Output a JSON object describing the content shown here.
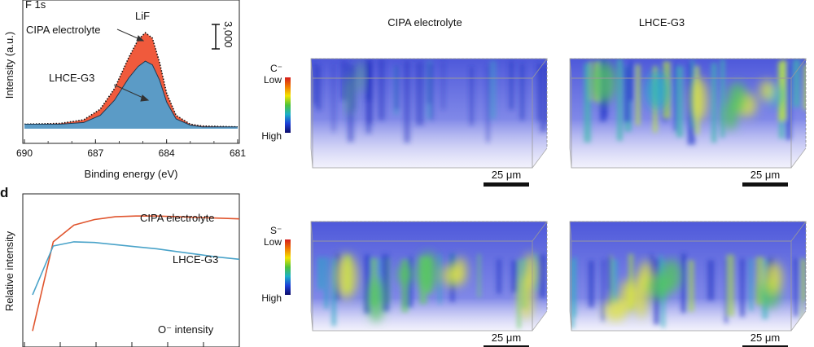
{
  "panels": {
    "c": {
      "label": "F 1s"
    },
    "d": {
      "label": "d"
    }
  },
  "tof": {
    "columns": [
      "CIPA electrolyte",
      "LHCE-G3"
    ],
    "ions": [
      {
        "name": "C⁻"
      },
      {
        "name": "S⁻"
      }
    ],
    "scale_low": "Low",
    "scale_high": "High",
    "scale_bar": "25 μm",
    "colormap": [
      "#d41c1c",
      "#f07a00",
      "#f2e400",
      "#4cc23a",
      "#1cb0c8",
      "#1d3fd8",
      "#0c0c6a"
    ]
  },
  "chart_data": [
    {
      "type": "area",
      "title": "F 1s",
      "xlabel": "Binding energy (eV)",
      "ylabel": "Intensity (a.u.)",
      "xlim": [
        690,
        681
      ],
      "x_reversed": true,
      "xticks": [
        "690",
        "687",
        "684",
        "681"
      ],
      "scale_bar_label": "3,000",
      "annotations": [
        "LiF",
        "CIPA electrolyte",
        "LHCE-G3"
      ],
      "series": [
        {
          "name": "CIPA electrolyte",
          "color": "#f05a3c",
          "x": [
            690,
            688.5,
            687.5,
            686.8,
            686.2,
            685.6,
            685.2,
            684.9,
            684.6,
            684.3,
            684.0,
            683.6,
            683.0,
            682.5,
            681
          ],
          "y": [
            0.05,
            0.06,
            0.1,
            0.22,
            0.45,
            0.8,
            1.0,
            1.08,
            1.02,
            0.75,
            0.4,
            0.15,
            0.05,
            0.03,
            0.02
          ]
        },
        {
          "name": "LHCE-G3",
          "color": "#5b9bc6",
          "x": [
            690,
            688.5,
            687.5,
            686.8,
            686.2,
            685.6,
            685.2,
            684.9,
            684.6,
            684.3,
            684.0,
            683.6,
            683.0,
            682.5,
            681
          ],
          "y": [
            0.05,
            0.05,
            0.07,
            0.15,
            0.32,
            0.57,
            0.7,
            0.76,
            0.72,
            0.55,
            0.3,
            0.11,
            0.04,
            0.02,
            0.02
          ]
        }
      ]
    },
    {
      "type": "line",
      "xlabel": "",
      "ylabel": "Relative intensity",
      "annotation": "O⁻ intensity",
      "x": [
        0,
        0.1,
        0.2,
        0.3,
        0.4,
        0.5,
        0.6,
        0.7,
        0.8,
        0.9,
        1.0
      ],
      "series": [
        {
          "name": "CIPA electrolyte",
          "color": "#e0552e",
          "y": [
            0.08,
            0.72,
            0.84,
            0.88,
            0.9,
            0.905,
            0.905,
            0.9,
            0.895,
            0.89,
            0.885
          ]
        },
        {
          "name": "LHCE-G3",
          "color": "#4aa3c9",
          "y": [
            0.34,
            0.69,
            0.72,
            0.715,
            0.7,
            0.685,
            0.67,
            0.65,
            0.63,
            0.61,
            0.595
          ]
        }
      ]
    }
  ]
}
